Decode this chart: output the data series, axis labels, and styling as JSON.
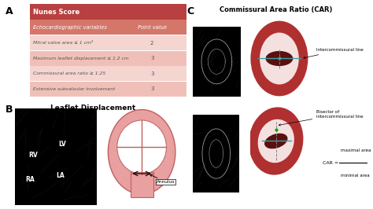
{
  "title_a": "A",
  "title_b": "B",
  "title_c": "C",
  "table_header": "Nunes Score",
  "col_headers": [
    "Echocardiographic variables",
    "Point value"
  ],
  "rows": [
    [
      "Mitral valve area ≤ 1 cm²",
      "2"
    ],
    [
      "Maximum leaflet displacement ≤ 1.2 cm",
      "3"
    ],
    [
      "Commissural area ratio ≥ 1.25",
      "3"
    ],
    [
      "Extensive subvalvular involvement",
      "3"
    ]
  ],
  "header_bg": "#b94040",
  "header_text": "#ffffff",
  "col_header_bg": "#d4766a",
  "col_header_text": "#ffffff",
  "row_bg_odd": "#f5d5d0",
  "row_bg_even": "#f0c0b8",
  "row_text": "#555555",
  "section_b_title": "Leaflet Displacement",
  "annulus_label": "Annulus",
  "section_c_title": "Commissural Area Ratio (CAR)",
  "car_label1": "Intercommissural line",
  "car_label2": "Bisector of\nintercommissural line",
  "car_formula_top": "maximal area",
  "car_formula_bot": "minimal area",
  "bg_color": "#ffffff",
  "heart_color": "#e8a0a0",
  "heart_outline": "#c06060",
  "car_fill": "#b03030",
  "teal": "#40a0a0"
}
